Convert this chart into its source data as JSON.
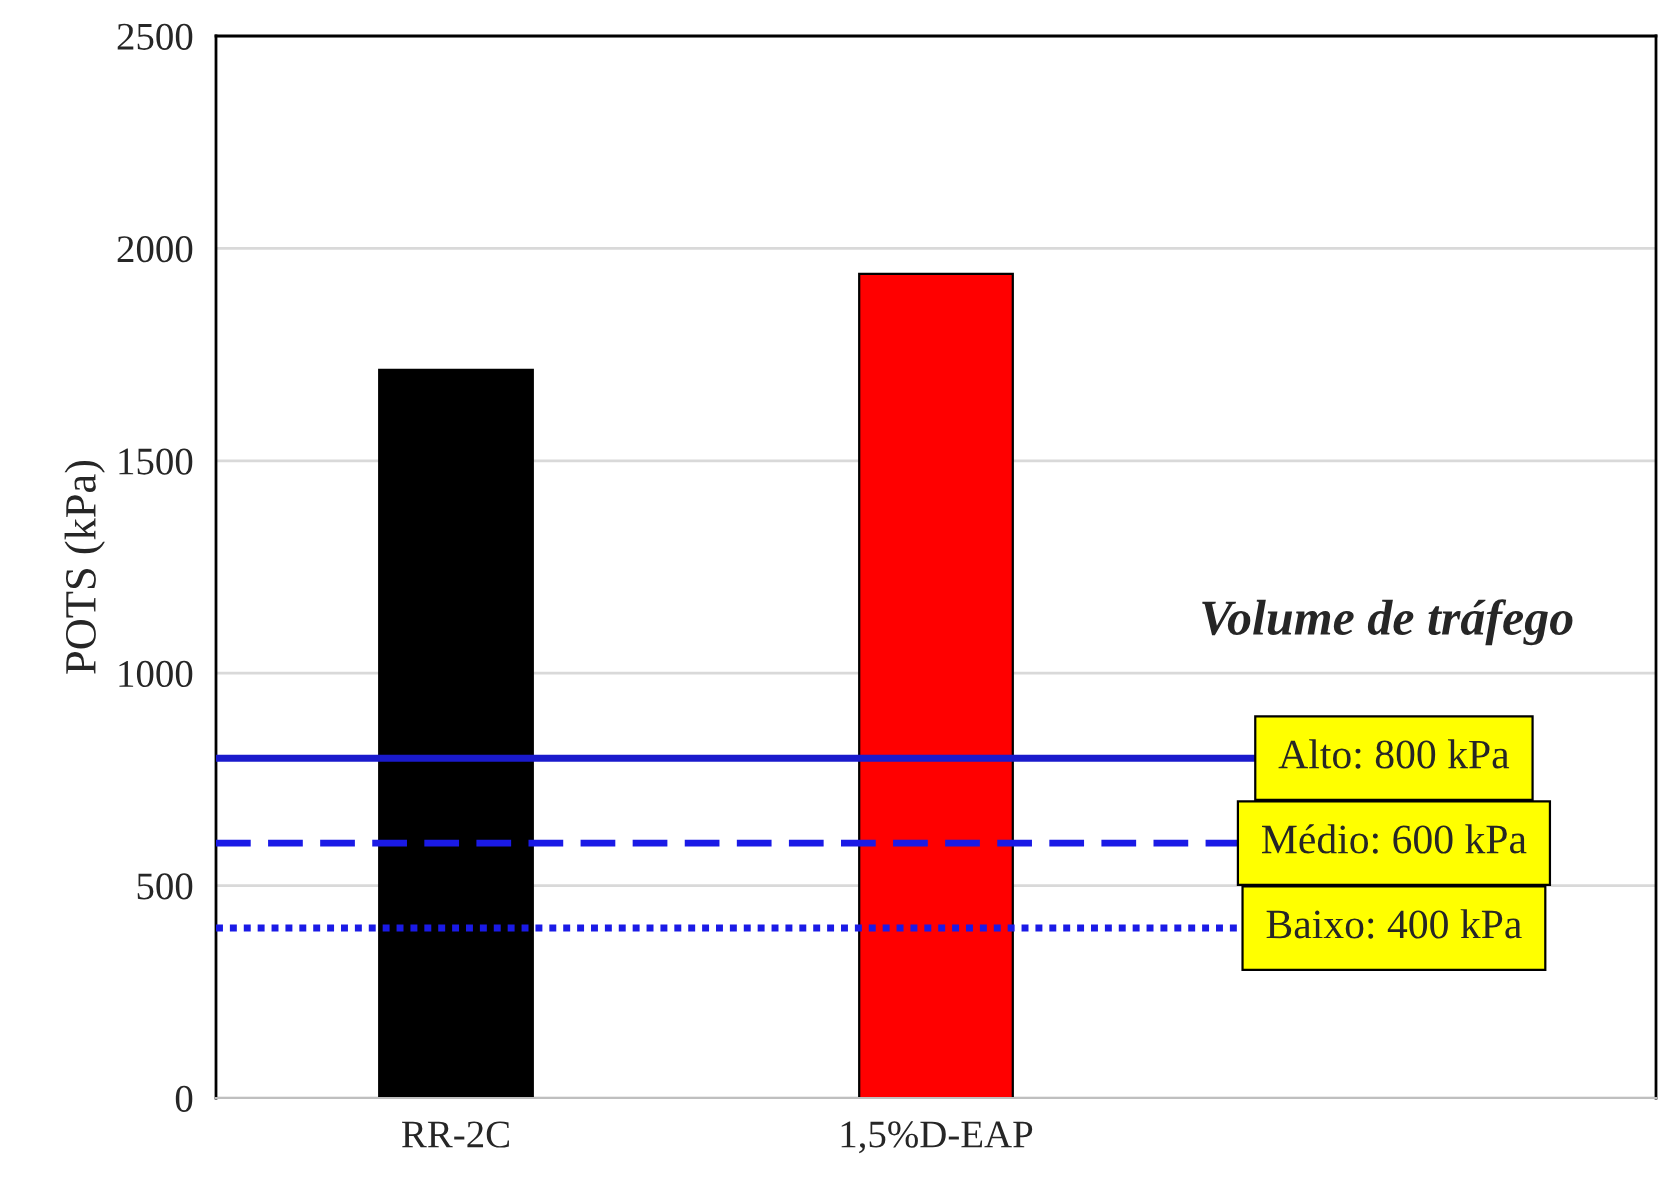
{
  "chart_data": {
    "type": "bar",
    "ylabel": "POTS (kPa)",
    "categories": [
      "RR-2C",
      "1,5%D-EAP",
      null
    ],
    "values": [
      1714,
      1940,
      null
    ],
    "colors": [
      "#000000",
      "#ff0000",
      "#ff0000"
    ],
    "ylim": [
      0,
      2500
    ],
    "yticks": [
      0,
      500,
      1000,
      1500,
      2000,
      2500
    ],
    "grid": "y",
    "ref_lines": [
      {
        "axis": "y",
        "value": 800,
        "label": "Alto: 800 kPa",
        "color": "#1a1acc",
        "line_style": "solid"
      },
      {
        "axis": "y",
        "value": 600,
        "label": "Médio: 600 kPa",
        "color": "#1a1ae6",
        "line_style": "dashed"
      },
      {
        "axis": "y",
        "value": 400,
        "label": "Baixo: 400 kPa",
        "color": "#1a1ae6",
        "line_style": "dotted"
      }
    ],
    "annotations": [
      "Volume de tráfego"
    ]
  }
}
